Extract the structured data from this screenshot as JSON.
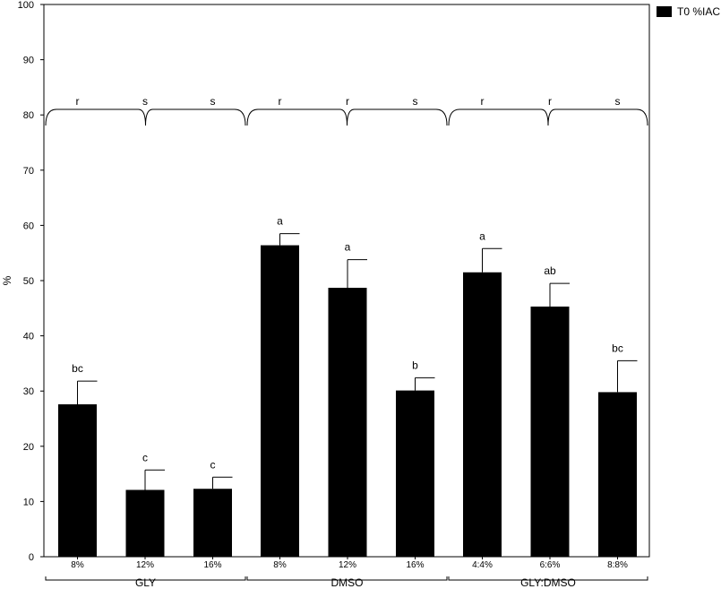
{
  "chart_data": {
    "type": "bar",
    "ylabel": "%",
    "xlabel": "",
    "title": "",
    "ylim": [
      0,
      100
    ],
    "yticks": [
      0,
      10,
      20,
      30,
      40,
      50,
      60,
      70,
      80,
      90,
      100
    ],
    "legend": {
      "label": "T0 %IAC",
      "color": "#000000",
      "position": "top-right"
    },
    "bar_color": "#000000",
    "groups": [
      {
        "name": "GLY",
        "group_letters": [
          "r",
          "s",
          "s"
        ],
        "categories": [
          "8%",
          "12%",
          "16%"
        ],
        "values": [
          27.6,
          12.1,
          12.3
        ],
        "errors": [
          4.2,
          3.6,
          2.1
        ],
        "letters": [
          "bc",
          "c",
          "c"
        ]
      },
      {
        "name": "DMSO",
        "group_letters": [
          "r",
          "r",
          "s"
        ],
        "categories": [
          "8%",
          "12%",
          "16%"
        ],
        "values": [
          56.4,
          48.7,
          30.1
        ],
        "errors": [
          2.1,
          5.1,
          2.3
        ],
        "letters": [
          "a",
          "a",
          "b"
        ]
      },
      {
        "name": "GLY:DMSO",
        "group_letters": [
          "r",
          "r",
          "s"
        ],
        "categories": [
          "4:4%",
          "6:6%",
          "8:8%"
        ],
        "values": [
          51.5,
          45.3,
          29.8
        ],
        "errors": [
          4.3,
          4.2,
          5.7
        ],
        "letters": [
          "a",
          "ab",
          "bc"
        ]
      }
    ]
  }
}
